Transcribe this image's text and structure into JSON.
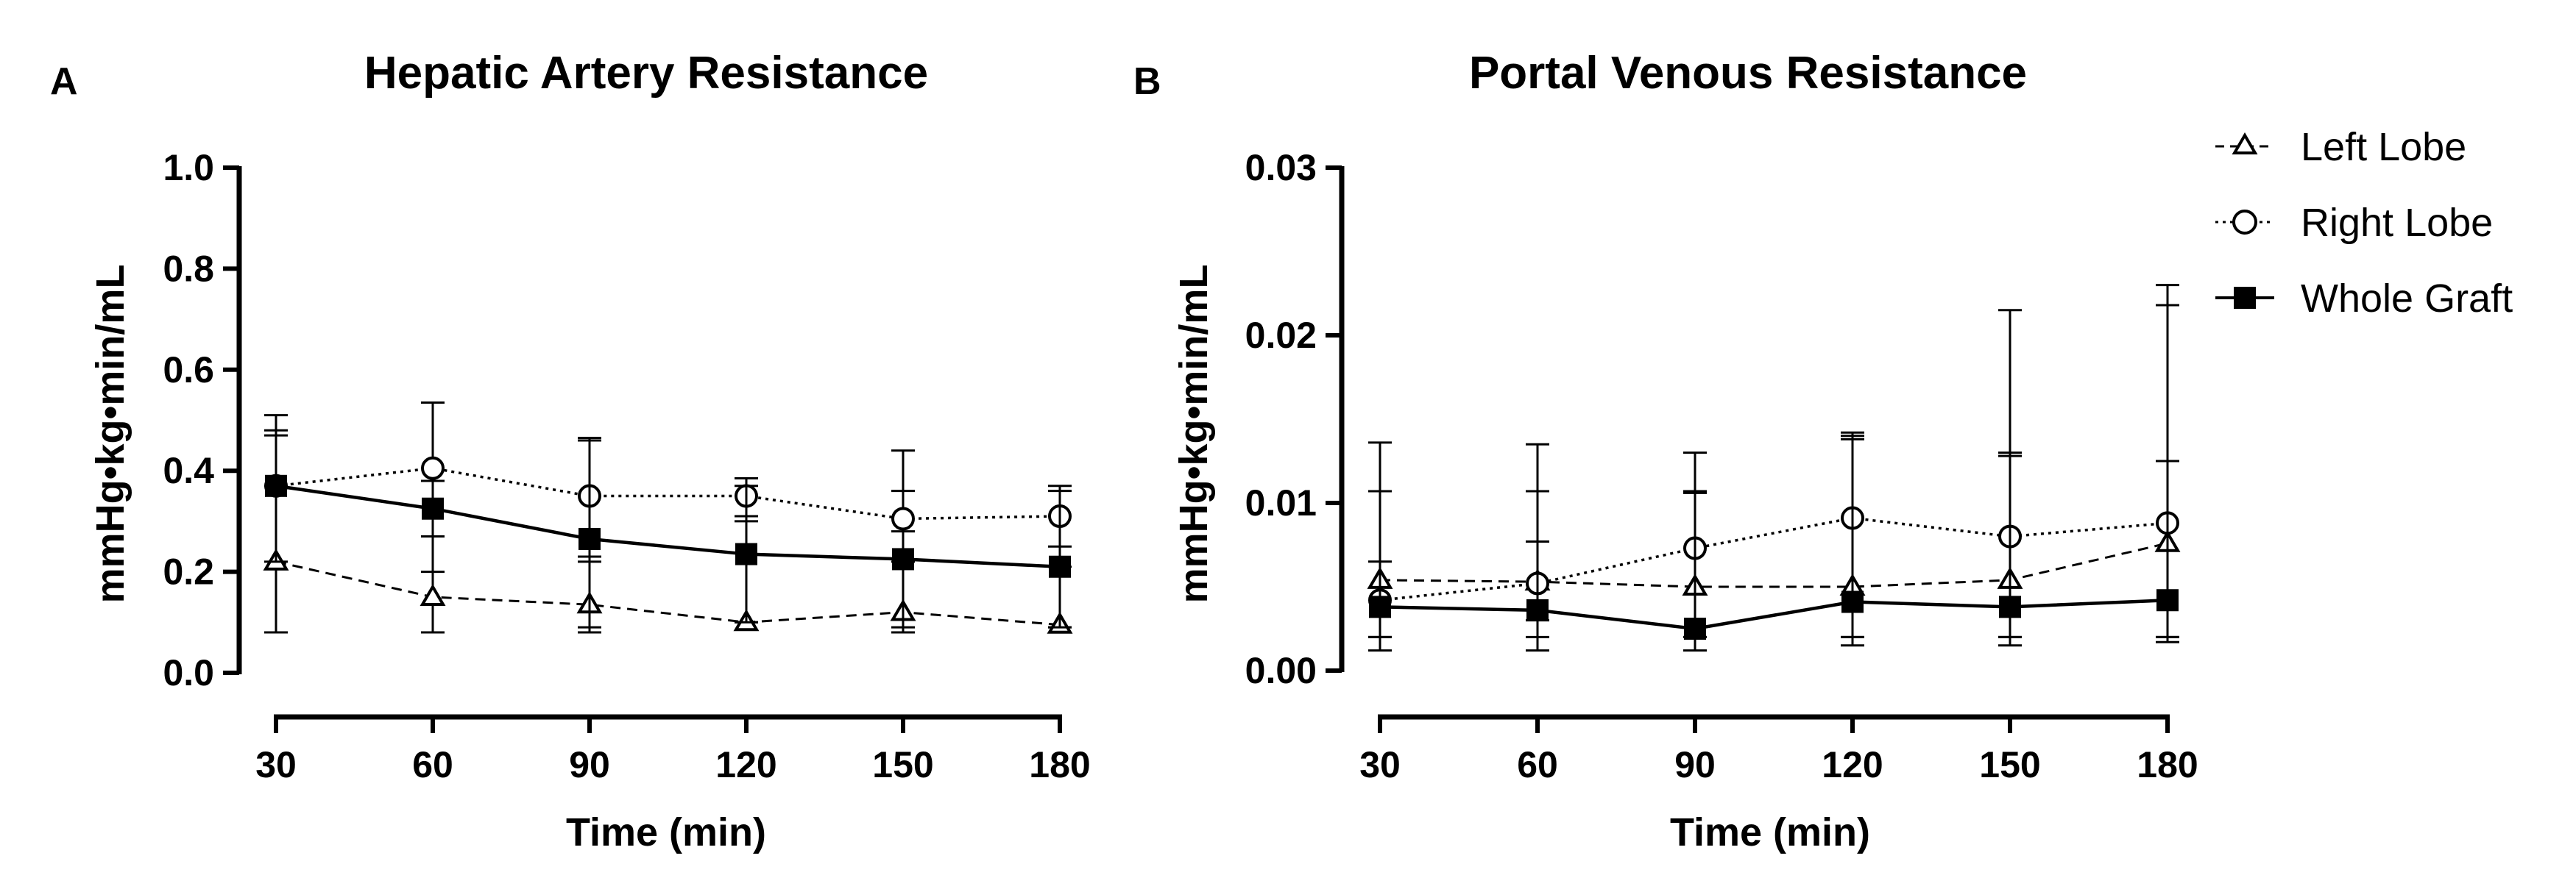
{
  "chart_data": [
    {
      "type": "line",
      "panel": "A",
      "title": "Hepatic Artery Resistance",
      "xlabel": "Time (min)",
      "ylabel": "mmHg•kg•min/mL",
      "x": [
        30,
        60,
        90,
        120,
        150,
        180
      ],
      "xticks": [
        "30",
        "60",
        "90",
        "120",
        "150",
        "180"
      ],
      "ylim": [
        0,
        1.0
      ],
      "yticks": [
        "0.0",
        "0.2",
        "0.4",
        "0.6",
        "0.8",
        "1.0"
      ],
      "series": [
        {
          "name": "Left Lobe",
          "marker": "triangle-open",
          "line": "dashed",
          "values": [
            0.22,
            0.15,
            0.135,
            0.1,
            0.12,
            0.095
          ],
          "err_hi": [
            0.48,
            0.27,
            0.22,
            0.3,
            0.36,
            0.21
          ],
          "err_lo": [
            0.08,
            0.08,
            0.08,
            0.1,
            0.08,
            0.09
          ]
        },
        {
          "name": "Right Lobe",
          "marker": "circle-open",
          "line": "dotted",
          "values": [
            0.37,
            0.405,
            0.35,
            0.35,
            0.305,
            0.31
          ],
          "err_hi": [
            0.51,
            0.535,
            0.465,
            0.385,
            0.44,
            0.37
          ],
          "err_lo": [
            0.37,
            0.27,
            0.23,
            0.31,
            0.22,
            0.25
          ]
        },
        {
          "name": "Whole Graft",
          "marker": "square-filled",
          "line": "solid",
          "values": [
            0.37,
            0.325,
            0.265,
            0.235,
            0.225,
            0.21
          ],
          "err_hi": [
            0.47,
            0.38,
            0.46,
            0.37,
            0.28,
            0.36
          ],
          "err_lo": [
            0.22,
            0.2,
            0.09,
            0.1,
            0.09,
            0.09
          ]
        }
      ]
    },
    {
      "type": "line",
      "panel": "B",
      "title": "Portal Venous Resistance",
      "xlabel": "Time (min)",
      "ylabel": "mmHg•kg•min/mL",
      "x": [
        30,
        60,
        90,
        120,
        150,
        180
      ],
      "xticks": [
        "30",
        "60",
        "90",
        "120",
        "150",
        "180"
      ],
      "ylim": [
        0,
        0.03
      ],
      "yticks": [
        "0.00",
        "0.01",
        "0.02",
        "0.03"
      ],
      "series": [
        {
          "name": "Left Lobe",
          "marker": "triangle-open",
          "line": "dashed",
          "values": [
            0.0054,
            0.0053,
            0.005,
            0.005,
            0.0054,
            0.0076
          ],
          "err_hi": [
            0.0107,
            0.0107,
            0.0107,
            0.014,
            0.013,
            0.0125
          ],
          "err_lo": [
            0.002,
            0.002,
            0.002,
            0.002,
            0.002,
            0.002
          ]
        },
        {
          "name": "Right Lobe",
          "marker": "circle-open",
          "line": "dotted",
          "values": [
            0.0042,
            0.0052,
            0.0073,
            0.0091,
            0.008,
            0.0088
          ],
          "err_hi": [
            0.0065,
            0.0077,
            0.013,
            0.0142,
            0.0215,
            0.023
          ],
          "err_lo": [
            0.002,
            0.003,
            0.002,
            0.002,
            0.002,
            0.002
          ]
        },
        {
          "name": "Whole Graft",
          "marker": "square-filled",
          "line": "solid",
          "values": [
            0.0038,
            0.0036,
            0.0025,
            0.0041,
            0.0038,
            0.0042
          ],
          "err_hi": [
            0.0136,
            0.0135,
            0.0106,
            0.0138,
            0.0128,
            0.0218
          ],
          "err_lo": [
            0.0012,
            0.0012,
            0.0012,
            0.0015,
            0.0015,
            0.0017
          ]
        }
      ]
    }
  ],
  "legend": {
    "items": [
      {
        "label": "Left Lobe",
        "marker": "triangle-open",
        "line": "dashed"
      },
      {
        "label": "Right Lobe",
        "marker": "circle-open",
        "line": "dotted"
      },
      {
        "label": "Whole Graft",
        "marker": "square-filled",
        "line": "solid"
      }
    ]
  },
  "colors": {
    "ink": "#000000",
    "background": "#ffffff"
  }
}
